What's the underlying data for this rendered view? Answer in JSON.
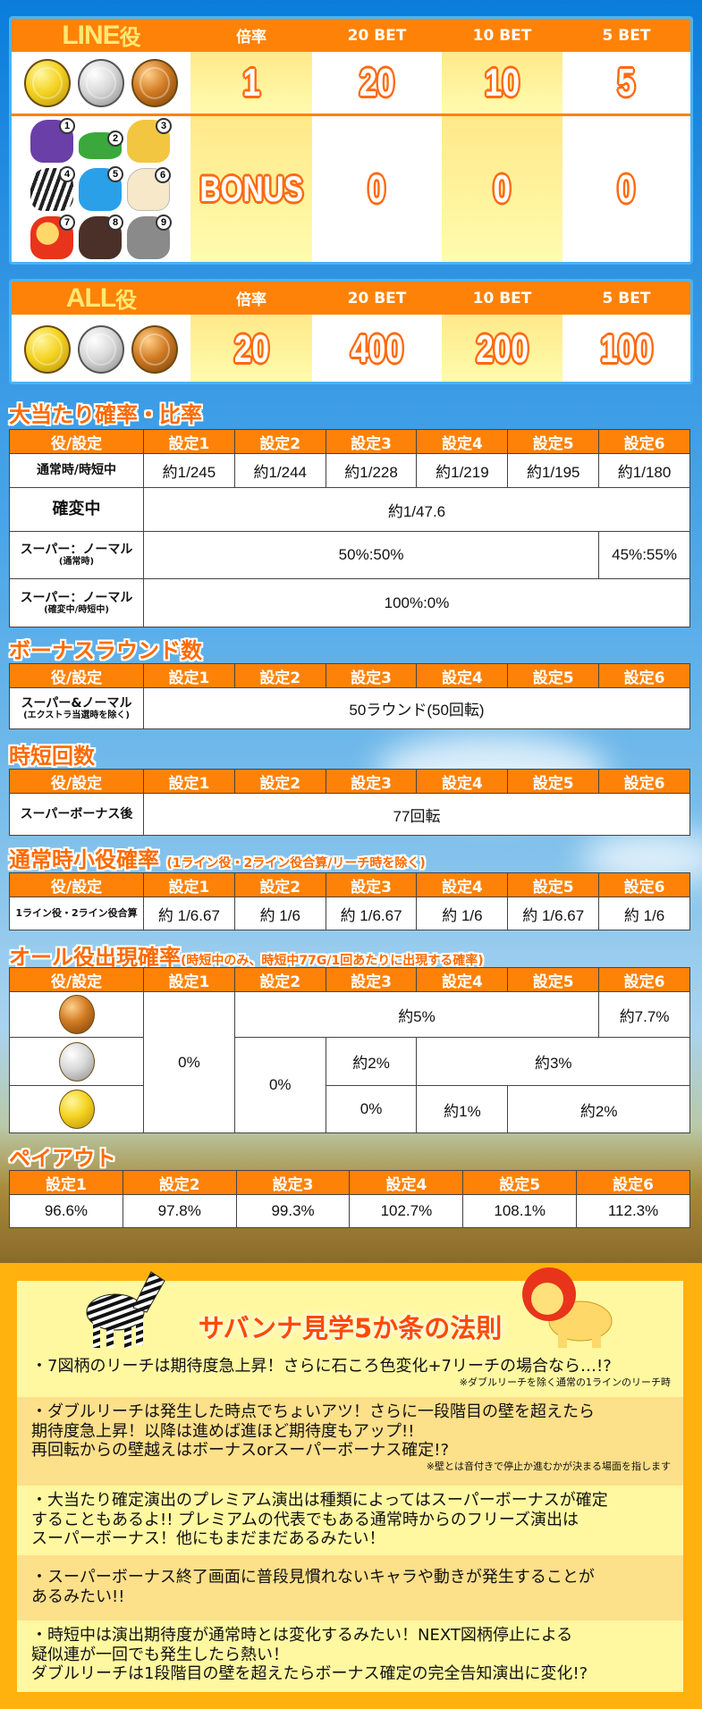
{
  "line_table": {
    "title": "LINE",
    "title_suffix": "役",
    "headers": [
      "倍率",
      "20 BET",
      "10 BET",
      "5 BET"
    ],
    "rows": [
      {
        "symbols": [
          "gold-coin",
          "silver-coin",
          "bronze-coin"
        ],
        "values": [
          "1",
          "20",
          "10",
          "5"
        ]
      },
      {
        "symbols": [
          "gorilla",
          "crocodile",
          "tiger",
          "zebra",
          "elephant",
          "fennec",
          "lion",
          "vulture",
          "rhino"
        ],
        "symbol_numbers": [
          "1",
          "2",
          "3",
          "4",
          "5",
          "6",
          "7",
          "8",
          "9"
        ],
        "values": [
          "BONUS",
          "0",
          "0",
          "0"
        ]
      }
    ]
  },
  "all_table": {
    "title": "ALL",
    "title_suffix": "役",
    "headers": [
      "倍率",
      "20 BET",
      "10 BET",
      "5 BET"
    ],
    "rows": [
      {
        "symbols": [
          "gold-coin",
          "silver-coin",
          "bronze-coin"
        ],
        "values": [
          "20",
          "400",
          "200",
          "100"
        ]
      }
    ]
  },
  "settings_header": [
    "役/設定",
    "設定1",
    "設定2",
    "設定3",
    "設定4",
    "設定5",
    "設定6"
  ],
  "jackpot": {
    "title": "大当たり確率・比率",
    "rows": [
      {
        "label": "通常時/時短中",
        "values": [
          "約1/245",
          "約1/244",
          "約1/228",
          "約1/219",
          "約1/195",
          "約1/180"
        ]
      },
      {
        "label": "確変中",
        "values": [
          {
            "value": "約1/47.6",
            "settings": "1-6"
          }
        ]
      },
      {
        "label": "スーパー：ノーマル",
        "sub": "(通常時)",
        "values": [
          {
            "value": "50%:50%",
            "settings": "1-5"
          },
          {
            "value": "45%:55%",
            "settings": "6"
          }
        ]
      },
      {
        "label": "スーパー：ノーマル",
        "sub": "(確変中/時短中)",
        "values": [
          {
            "value": "100%:0%",
            "settings": "1-6"
          }
        ]
      }
    ]
  },
  "rounds": {
    "title": "ボーナスラウンド数",
    "label": "スーパー&ノーマル",
    "sub": "(エクストラ当選時を除く)",
    "value": "50ラウンド(50回転)"
  },
  "jitan": {
    "title": "時短回数",
    "label": "スーパーボーナス後",
    "value": "77回転"
  },
  "small": {
    "title": "通常時小役確率",
    "title_note": "(1ライン役・2ライン役合算/リーチ時を除く)",
    "label": "1ライン役・2ライン役合算",
    "values": [
      "約 1/6.67",
      "約 1/6",
      "約 1/6.67",
      "約 1/6",
      "約 1/6.67",
      "約 1/6"
    ]
  },
  "all_rate": {
    "title": "オール役出現確率",
    "title_note": "(時短中のみ、時短中77G/1回あたりに出現する確率)",
    "rows": [
      {
        "symbol": "bronze-coin"
      },
      {
        "symbol": "silver-coin"
      },
      {
        "symbol": "gold-coin"
      }
    ],
    "s1_all": "0%",
    "bronze_s2_5": "約5%",
    "bronze_s6": "約7.7%",
    "s2_silver_gold": "0%",
    "silver_s3": "約2%",
    "silver_s4_6": "約3%",
    "gold_s3": "0%",
    "gold_s4": "約1%",
    "gold_s5_6": "約2%"
  },
  "payout": {
    "title": "ペイアウト",
    "headers": [
      "設定1",
      "設定2",
      "設定3",
      "設定4",
      "設定5",
      "設定6"
    ],
    "values": [
      "96.6%",
      "97.8%",
      "99.3%",
      "102.7%",
      "108.1%",
      "112.3%"
    ]
  },
  "savanna": {
    "title": "サバンナ見学5か条の法則",
    "tips": [
      {
        "lines": [
          "・7図柄のリーチは期待度急上昇！さらに石ころ色変化+7リーチの場合なら…!?"
        ],
        "note": "※ダブルリーチを除く通常の1ラインのリーチ時"
      },
      {
        "lines": [
          "・ダブルリーチは発生した時点でちょいアツ！さらに一段階目の壁を超えたら",
          "期待度急上昇！以降は進めば進ほど期待度もアップ!!",
          "再回転からの壁越えはボーナスorスーパーボーナス確定!?"
        ],
        "note": "※壁とは音付きで停止か進むかが決まる場面を指します"
      },
      {
        "lines": [
          "・大当たり確定演出のプレミアム演出は種類によってはスーパーボーナスが確定",
          "することもあるよ!! プレミアムの代表でもある通常時からのフリーズ演出は",
          "スーパーボーナス！他にもまだまだあるみたい！"
        ]
      },
      {
        "lines": [
          "・スーパーボーナス終了画面に普段見慣れないキャラや動きが発生することが",
          "あるみたい!!"
        ]
      },
      {
        "lines": [
          "・時短中は演出期待度が通常時とは変化するみたい！NEXT図柄停止による",
          "疑似連が一回でも発生したら熱い！",
          "ダブルリーチは1段階目の壁を超えたらボーナス確定の完全告知演出に変化!?"
        ]
      }
    ]
  },
  "colors": {
    "header_orange": "#ff8208",
    "title_orange": "#ff6a00",
    "panel_yellow": "#fff8a0",
    "frame_orange": "#ffb20e",
    "sky_blue": "#0a7ddb"
  }
}
